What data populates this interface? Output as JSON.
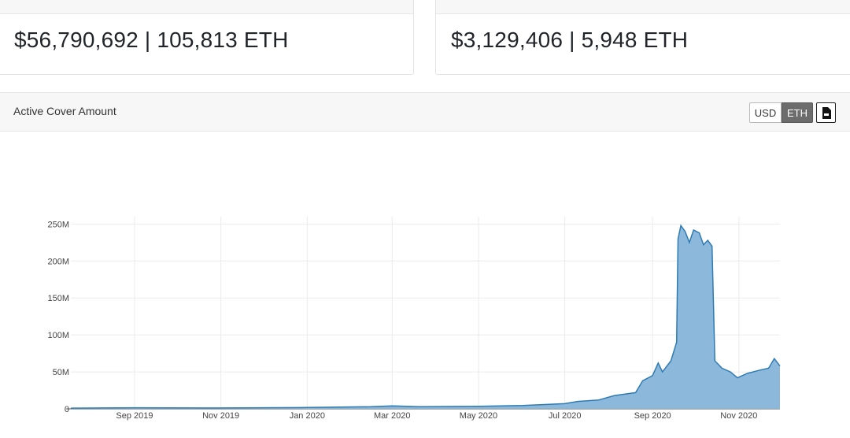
{
  "cards": [
    {
      "value": "$56,790,692 | 105,813 ETH"
    },
    {
      "value": "$3,129,406 | 5,948 ETH"
    }
  ],
  "panel": {
    "title": "Active Cover Amount",
    "currency_buttons": [
      "USD",
      "ETH"
    ],
    "active_currency": "ETH",
    "download_icon": "csv-file-icon"
  },
  "colors": {
    "fill": "#86b4d9",
    "line": "#2f7bb4",
    "grid": "#ebebeb"
  },
  "chart_data": {
    "type": "area",
    "x_tick_labels": [
      "Sep 2019",
      "Nov 2019",
      "Jan 2020",
      "Mar 2020",
      "May 2020",
      "Jul 2020",
      "Sep 2020",
      "Nov 2020"
    ],
    "y_tick_labels": [
      "0",
      "50M",
      "100M",
      "150M",
      "200M",
      "250M"
    ],
    "ylim": [
      0,
      260000000
    ],
    "xlim": [
      "2019-07-18",
      "2020-11-30"
    ],
    "grid": true,
    "series": [
      {
        "points": [
          [
            "2019-07-18",
            1000000
          ],
          [
            "2019-09-01",
            1500000
          ],
          [
            "2019-11-01",
            1200000
          ],
          [
            "2020-01-01",
            1800000
          ],
          [
            "2020-02-15",
            3000000
          ],
          [
            "2020-03-01",
            4000000
          ],
          [
            "2020-03-20",
            3000000
          ],
          [
            "2020-05-01",
            3500000
          ],
          [
            "2020-06-01",
            4500000
          ],
          [
            "2020-07-01",
            7000000
          ],
          [
            "2020-07-10",
            10000000
          ],
          [
            "2020-07-25",
            12000000
          ],
          [
            "2020-08-05",
            18000000
          ],
          [
            "2020-08-20",
            22000000
          ],
          [
            "2020-08-25",
            38000000
          ],
          [
            "2020-09-01",
            45000000
          ],
          [
            "2020-09-05",
            62000000
          ],
          [
            "2020-09-08",
            50000000
          ],
          [
            "2020-09-14",
            65000000
          ],
          [
            "2020-09-18",
            90000000
          ],
          [
            "2020-09-19",
            230000000
          ],
          [
            "2020-09-21",
            248000000
          ],
          [
            "2020-09-24",
            240000000
          ],
          [
            "2020-09-27",
            225000000
          ],
          [
            "2020-09-30",
            242000000
          ],
          [
            "2020-10-04",
            238000000
          ],
          [
            "2020-10-07",
            222000000
          ],
          [
            "2020-10-10",
            228000000
          ],
          [
            "2020-10-13",
            220000000
          ],
          [
            "2020-10-15",
            65000000
          ],
          [
            "2020-10-20",
            55000000
          ],
          [
            "2020-10-26",
            50000000
          ],
          [
            "2020-10-31",
            42000000
          ],
          [
            "2020-11-07",
            48000000
          ],
          [
            "2020-11-15",
            52000000
          ],
          [
            "2020-11-22",
            55000000
          ],
          [
            "2020-11-26",
            68000000
          ],
          [
            "2020-11-30",
            58000000
          ]
        ]
      }
    ]
  }
}
